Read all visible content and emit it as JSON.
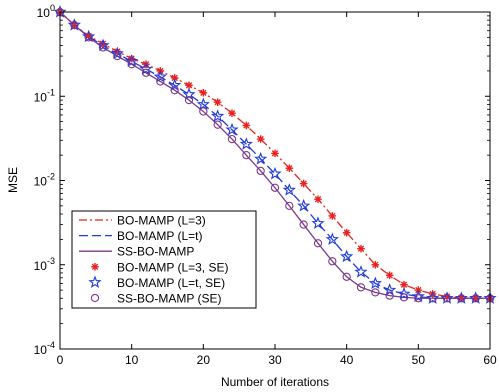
{
  "chart_data": {
    "type": "line",
    "title": "",
    "xlabel": "Number of iterations",
    "ylabel": "MSE",
    "xlim": [
      0,
      60
    ],
    "ylim": [
      0.0001,
      1
    ],
    "yscale": "log",
    "grid": false,
    "legend_position": "bottom-left",
    "x_ticks": [
      {
        "value": 0,
        "label": "0"
      },
      {
        "value": 10,
        "label": "10"
      },
      {
        "value": 20,
        "label": "20"
      },
      {
        "value": 30,
        "label": "30"
      },
      {
        "value": 40,
        "label": "40"
      },
      {
        "value": 50,
        "label": "50"
      },
      {
        "value": 60,
        "label": "60"
      }
    ],
    "y_ticks": [
      {
        "value": 0.0001,
        "base": "10",
        "exp": "-4"
      },
      {
        "value": 0.001,
        "base": "10",
        "exp": "-3"
      },
      {
        "value": 0.01,
        "base": "10",
        "exp": "-2"
      },
      {
        "value": 0.1,
        "base": "10",
        "exp": "-1"
      },
      {
        "value": 1,
        "base": "10",
        "exp": "0"
      }
    ],
    "series": [
      {
        "name": "BO-MAMP (L=3)",
        "kind": "line",
        "color": "#e8231f",
        "dash": "dashdot",
        "x": [
          0,
          2,
          4,
          6,
          8,
          10,
          12,
          14,
          16,
          18,
          20,
          22,
          24,
          26,
          28,
          30,
          32,
          34,
          36,
          38,
          40,
          42,
          44,
          46,
          48,
          50,
          52,
          54,
          56,
          58,
          60
        ],
        "y": [
          1,
          0.7,
          0.52,
          0.42,
          0.34,
          0.28,
          0.24,
          0.2,
          0.165,
          0.135,
          0.11,
          0.085,
          0.063,
          0.045,
          0.031,
          0.021,
          0.014,
          0.0092,
          0.006,
          0.0038,
          0.0024,
          0.00155,
          0.001,
          0.00075,
          0.00058,
          0.0005,
          0.00045,
          0.00042,
          0.0004,
          0.0004,
          0.0004
        ]
      },
      {
        "name": "BO-MAMP (L=t)",
        "kind": "line",
        "color": "#1f3bd9",
        "dash": "dashed",
        "x": [
          0,
          2,
          4,
          6,
          8,
          10,
          12,
          14,
          16,
          18,
          20,
          22,
          24,
          26,
          28,
          30,
          32,
          34,
          36,
          38,
          40,
          42,
          44,
          46,
          48,
          50,
          52,
          54,
          56,
          58,
          60
        ],
        "y": [
          1,
          0.7,
          0.51,
          0.4,
          0.32,
          0.26,
          0.21,
          0.17,
          0.135,
          0.105,
          0.08,
          0.058,
          0.04,
          0.027,
          0.018,
          0.012,
          0.0077,
          0.005,
          0.0031,
          0.002,
          0.00125,
          0.00082,
          0.0006,
          0.0005,
          0.00045,
          0.00042,
          0.0004,
          0.0004,
          0.0004,
          0.0004,
          0.0004
        ]
      },
      {
        "name": "SS-BO-MAMP",
        "kind": "line",
        "color": "#7b3a8a",
        "dash": "solid",
        "x": [
          0,
          2,
          4,
          6,
          8,
          10,
          12,
          14,
          16,
          18,
          20,
          22,
          24,
          26,
          28,
          30,
          32,
          34,
          36,
          38,
          40,
          42,
          44,
          46,
          48,
          50,
          52,
          54,
          56,
          58,
          60
        ],
        "y": [
          1,
          0.7,
          0.5,
          0.38,
          0.3,
          0.24,
          0.19,
          0.15,
          0.118,
          0.09,
          0.066,
          0.046,
          0.031,
          0.02,
          0.013,
          0.0082,
          0.005,
          0.003,
          0.0018,
          0.0011,
          0.00072,
          0.00054,
          0.00047,
          0.00043,
          0.00041,
          0.0004,
          0.0004,
          0.0004,
          0.0004,
          0.0004,
          0.0004
        ]
      },
      {
        "name": "BO-MAMP (L=3, SE)",
        "kind": "marker",
        "marker": "asterisk",
        "color": "#e8231f",
        "x": [
          0,
          2,
          4,
          6,
          8,
          10,
          12,
          14,
          16,
          18,
          20,
          22,
          24,
          26,
          28,
          30,
          32,
          34,
          36,
          38,
          40,
          42,
          44,
          46,
          48,
          50,
          52,
          54,
          56,
          58,
          60
        ],
        "y": [
          1,
          0.7,
          0.52,
          0.42,
          0.34,
          0.28,
          0.24,
          0.2,
          0.165,
          0.135,
          0.11,
          0.085,
          0.063,
          0.045,
          0.031,
          0.021,
          0.014,
          0.0092,
          0.006,
          0.0038,
          0.0024,
          0.00155,
          0.001,
          0.00075,
          0.00058,
          0.0005,
          0.00045,
          0.00042,
          0.0004,
          0.0004,
          0.0004
        ]
      },
      {
        "name": "BO-MAMP (L=t, SE)",
        "kind": "marker",
        "marker": "star",
        "color": "#1f3bd9",
        "x": [
          0,
          2,
          4,
          6,
          8,
          10,
          12,
          14,
          16,
          18,
          20,
          22,
          24,
          26,
          28,
          30,
          32,
          34,
          36,
          38,
          40,
          42,
          44,
          46,
          48,
          50,
          52,
          54,
          56,
          58,
          60
        ],
        "y": [
          1,
          0.7,
          0.51,
          0.4,
          0.32,
          0.26,
          0.21,
          0.17,
          0.135,
          0.105,
          0.08,
          0.058,
          0.04,
          0.027,
          0.018,
          0.012,
          0.0077,
          0.005,
          0.0031,
          0.002,
          0.00125,
          0.00082,
          0.0006,
          0.0005,
          0.00045,
          0.00042,
          0.0004,
          0.0004,
          0.0004,
          0.0004,
          0.0004
        ]
      },
      {
        "name": "SS-BO-MAMP (SE)",
        "kind": "marker",
        "marker": "circle",
        "color": "#7b3a8a",
        "x": [
          0,
          2,
          4,
          6,
          8,
          10,
          12,
          14,
          16,
          18,
          20,
          22,
          24,
          26,
          28,
          30,
          32,
          34,
          36,
          38,
          40,
          42,
          44,
          46,
          48,
          50,
          52,
          54,
          56,
          58,
          60
        ],
        "y": [
          1,
          0.7,
          0.5,
          0.38,
          0.3,
          0.24,
          0.19,
          0.15,
          0.118,
          0.09,
          0.066,
          0.046,
          0.031,
          0.02,
          0.013,
          0.0082,
          0.005,
          0.003,
          0.0018,
          0.0011,
          0.00072,
          0.00054,
          0.00047,
          0.00043,
          0.00041,
          0.0004,
          0.0004,
          0.0004,
          0.0004,
          0.0004,
          0.0004
        ]
      }
    ]
  }
}
